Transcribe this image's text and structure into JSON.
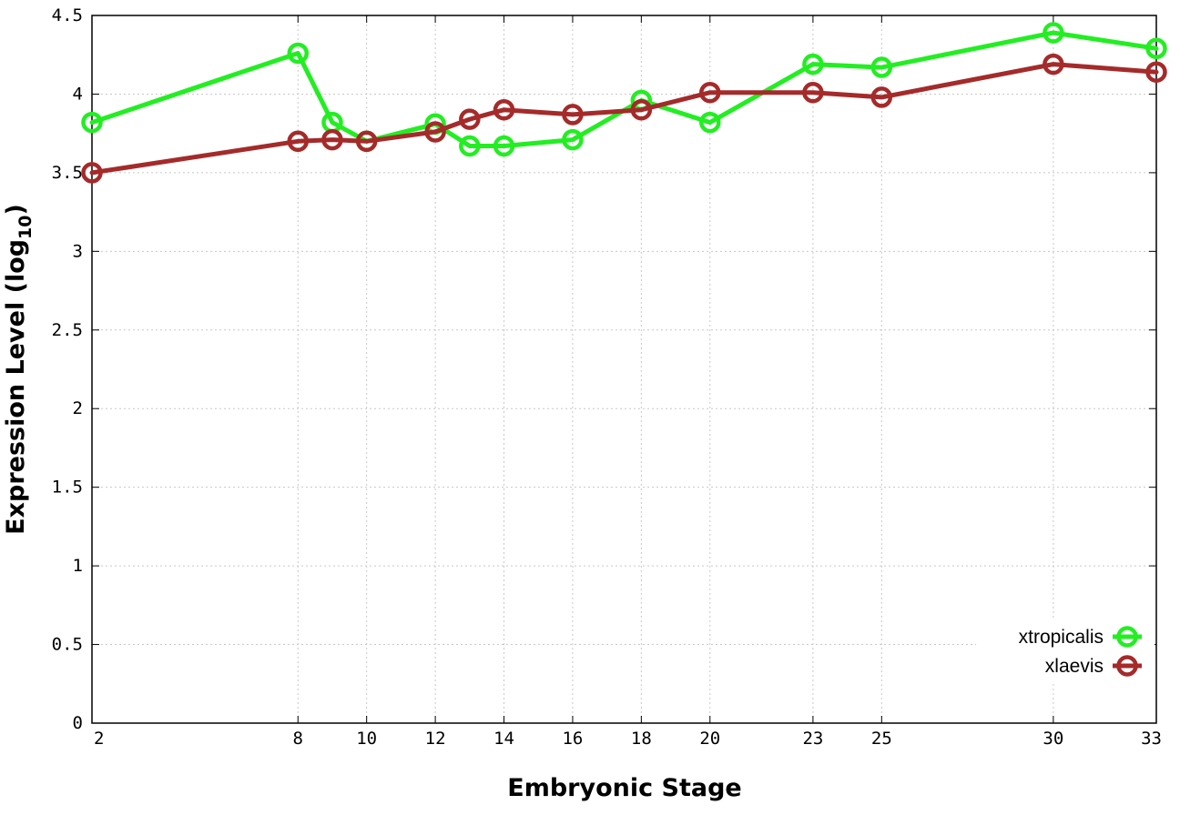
{
  "chart_data": {
    "type": "line",
    "xlabel": "Embryonic Stage",
    "ylabel_main": "Expression Level (log",
    "ylabel_sub": "10",
    "ylabel_end": ")",
    "x_tick_labels": [
      "2",
      "8",
      "10",
      "12",
      "14",
      "16",
      "18",
      "20",
      "23",
      "25",
      "30",
      "33"
    ],
    "y_tick_labels": [
      "0",
      "0.5",
      "1",
      "1.5",
      "2",
      "2.5",
      "3",
      "3.5",
      "4",
      "4.5"
    ],
    "ylim": [
      0,
      4.5
    ],
    "grid": true,
    "legend_position": "bottom-right",
    "x": [
      2,
      8,
      9,
      10,
      12,
      13,
      14,
      16,
      18,
      20,
      23,
      25,
      30,
      33
    ],
    "series": [
      {
        "name": "xtropicalis",
        "color": "#22ee22",
        "values": [
          3.82,
          4.26,
          3.82,
          3.7,
          3.81,
          3.67,
          3.67,
          3.71,
          3.96,
          3.82,
          4.19,
          4.17,
          4.39,
          4.29
        ]
      },
      {
        "name": "xlaevis",
        "color": "#a52a2a",
        "values": [
          3.5,
          3.7,
          3.71,
          3.7,
          3.76,
          3.84,
          3.9,
          3.87,
          3.9,
          4.01,
          4.01,
          3.98,
          4.19,
          4.14
        ]
      }
    ]
  }
}
